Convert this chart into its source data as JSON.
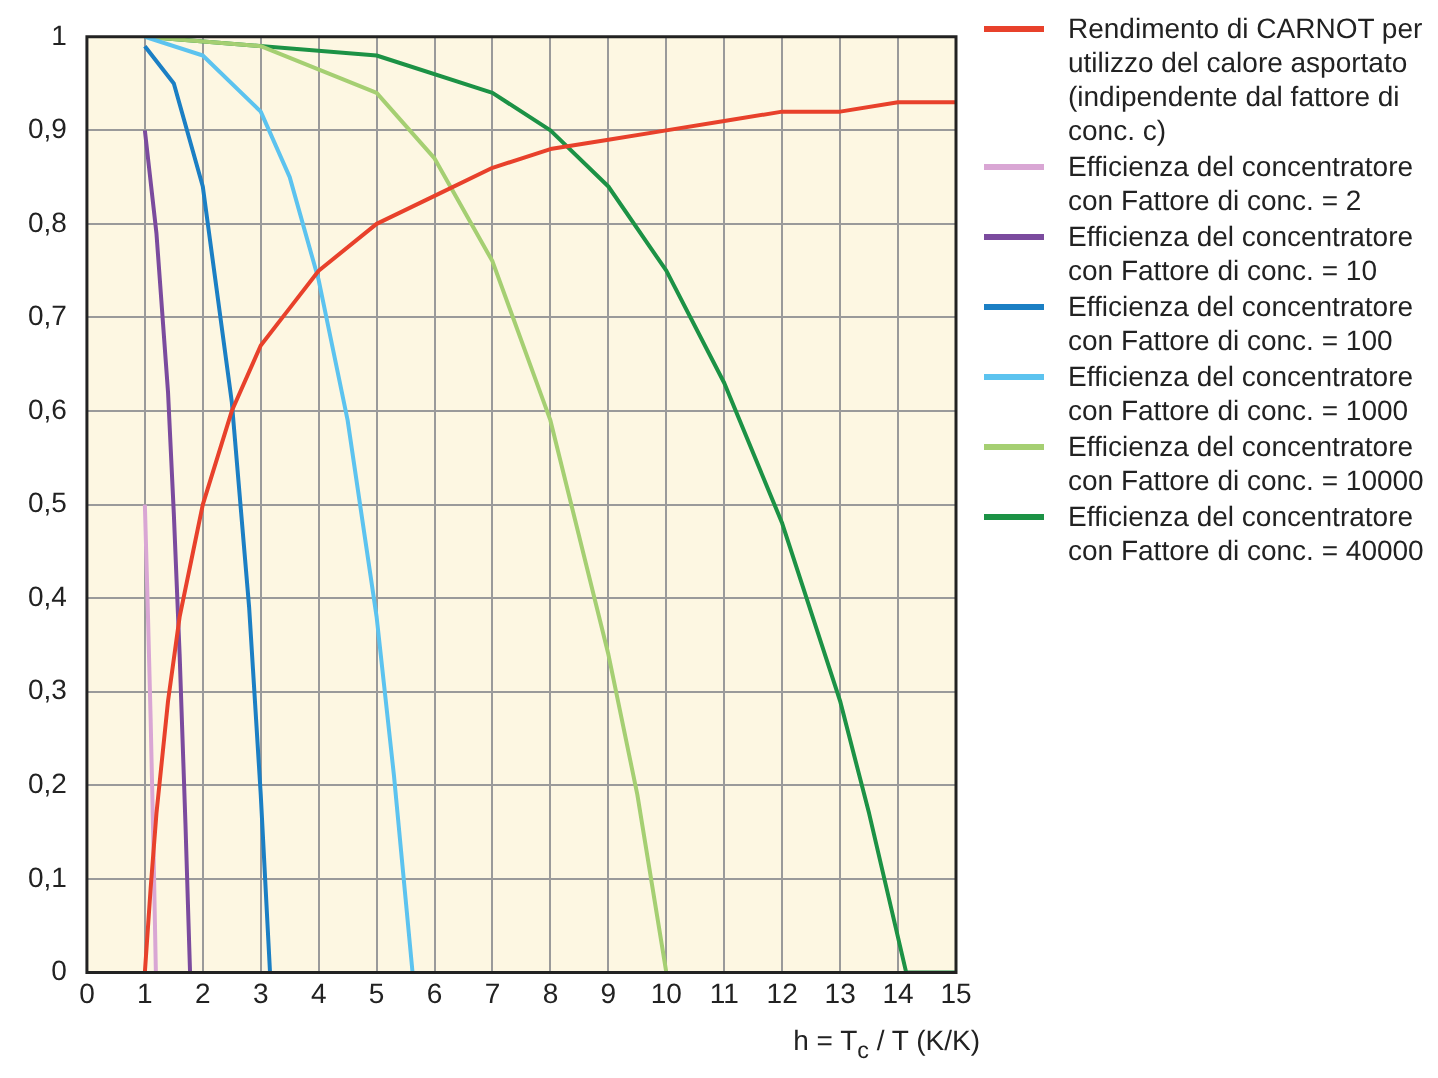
{
  "chart_data": {
    "type": "line",
    "xlabel": "h = T$_{c}$ / T (K/K)",
    "xlim": [
      0,
      15
    ],
    "xticks": [
      0,
      1,
      2,
      3,
      4,
      5,
      6,
      7,
      8,
      9,
      10,
      11,
      12,
      13,
      14,
      15
    ],
    "ylim": [
      0,
      1
    ],
    "yticks": [
      0,
      {
        "value": 0.1,
        "label": "0,1"
      },
      {
        "value": 0.2,
        "label": "0,2"
      },
      {
        "value": 0.3,
        "label": "0,3"
      },
      {
        "value": 0.4,
        "label": "0,4"
      },
      {
        "value": 0.5,
        "label": "0,5"
      },
      {
        "value": 0.6,
        "label": "0,6"
      },
      {
        "value": 0.7,
        "label": "0,7"
      },
      {
        "value": 0.8,
        "label": "0,8"
      },
      {
        "value": 0.9,
        "label": "0,9"
      },
      1
    ],
    "grid": true,
    "legend": "right",
    "marker": "none",
    "line_style": "solid",
    "series": [
      {
        "name": "Rendimento di CARNOT per utilizzo del calore asportato (indipendente dal fattore di conc. c)",
        "color": "#e8412b",
        "x": [
          1,
          1.1,
          1.2,
          1.4,
          1.6,
          1.8,
          2,
          2.5,
          3,
          3.5,
          4,
          5,
          6,
          7,
          8,
          9,
          10,
          11,
          12,
          13,
          14,
          15
        ],
        "values": [
          0,
          0.09,
          0.17,
          0.29,
          0.38,
          0.44,
          0.5,
          0.6,
          0.67,
          0.71,
          0.75,
          0.8,
          0.83,
          0.86,
          0.88,
          0.89,
          0.9,
          0.91,
          0.92,
          0.92,
          0.93,
          0.93
        ]
      },
      {
        "name": "Efficienza del concentratore con Fattore di conc. = 2",
        "color": "#d9a6d4",
        "x": [
          1,
          1.05,
          1.1,
          1.15,
          1.19
        ],
        "values": [
          0.5,
          0.39,
          0.27,
          0.13,
          0
        ]
      },
      {
        "name": "Efficienza del concentratore con Fattore di conc. = 10",
        "color": "#7b4b9e",
        "x": [
          1,
          1.2,
          1.4,
          1.5,
          1.6,
          1.7,
          1.78
        ],
        "values": [
          0.9,
          0.79,
          0.62,
          0.49,
          0.34,
          0.16,
          0
        ]
      },
      {
        "name": "Efficienza del concentratore con Fattore di conc. = 100",
        "color": "#1b7fc4",
        "x": [
          1,
          1.5,
          2,
          2.5,
          2.8,
          3,
          3.16
        ],
        "values": [
          0.99,
          0.95,
          0.84,
          0.61,
          0.39,
          0.19,
          0
        ]
      },
      {
        "name": "Efficienza del concentratore con Fattore di conc. = 1000",
        "color": "#5cc3ef",
        "x": [
          1,
          2,
          3,
          3.5,
          4,
          4.5,
          5,
          5.3,
          5.62
        ],
        "values": [
          1,
          0.98,
          0.92,
          0.85,
          0.74,
          0.59,
          0.38,
          0.21,
          0
        ]
      },
      {
        "name": "Efficienza del concentratore con Fattore di conc. = 10000",
        "color": "#a5cf72",
        "x": [
          1,
          3,
          5,
          6,
          7,
          8,
          9,
          9.5,
          10
        ],
        "values": [
          1,
          0.99,
          0.94,
          0.87,
          0.76,
          0.59,
          0.34,
          0.19,
          0
        ]
      },
      {
        "name": "Efficienza del concentratore con Fattore di conc. = 40000",
        "color": "#1c9245",
        "x": [
          1,
          5,
          7,
          8,
          9,
          10,
          11,
          12,
          13,
          13.5,
          14.14,
          15
        ],
        "values": [
          1,
          0.98,
          0.94,
          0.9,
          0.84,
          0.75,
          0.63,
          0.48,
          0.29,
          0.17,
          0,
          0
        ]
      }
    ]
  }
}
